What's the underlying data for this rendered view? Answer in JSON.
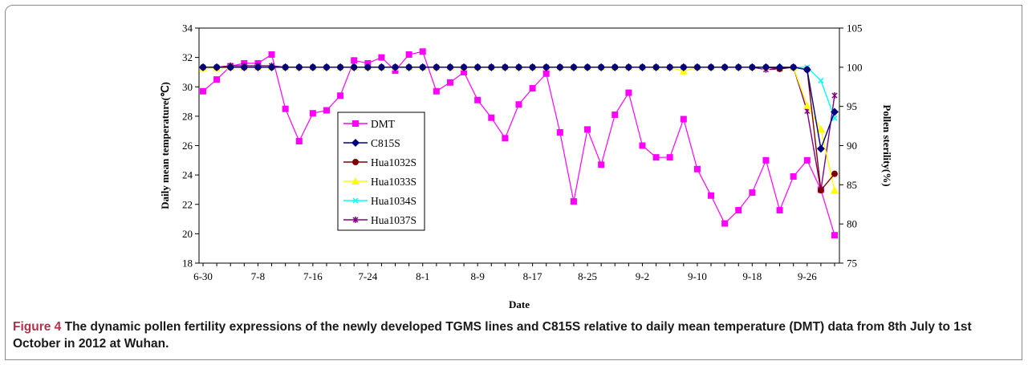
{
  "caption": {
    "label": "Figure 4",
    "text": "The dynamic pollen fertility expressions of the newly developed TGMS lines and C815S relative to daily mean temperature (DMT) data from 8th July to 1st October in 2012 at Wuhan."
  },
  "chart_data": {
    "type": "line",
    "xlabel": "Date",
    "ylabel": "Daily mean temperature(℃)",
    "y2label": "Pollen sterility(%)",
    "ylim": [
      18,
      34
    ],
    "y2lim": [
      75,
      105
    ],
    "yticks": [
      18,
      20,
      22,
      24,
      26,
      28,
      30,
      32,
      34
    ],
    "y2ticks": [
      75,
      80,
      85,
      90,
      95,
      100,
      105
    ],
    "x_tick_labels": [
      "6-30",
      "7-8",
      "7-16",
      "7-24",
      "8-1",
      "8-9",
      "8-17",
      "8-25",
      "9-2",
      "9-10",
      "9-18",
      "9-26"
    ],
    "x_tick_every": 4,
    "legend_position": "center-left",
    "grid": false,
    "temperature_series": {
      "name": "DMT",
      "color": "#ff00ff",
      "marker": "square",
      "values": [
        29.7,
        30.5,
        31.4,
        31.6,
        31.6,
        32.2,
        28.5,
        26.3,
        28.2,
        28.4,
        29.4,
        31.8,
        31.6,
        32.0,
        31.1,
        32.2,
        32.4,
        29.7,
        30.3,
        31.0,
        29.1,
        27.9,
        26.5,
        28.8,
        29.9,
        30.9,
        26.9,
        22.2,
        27.1,
        24.7,
        28.1,
        29.6,
        26.0,
        25.2,
        25.2,
        27.8,
        24.4,
        22.6,
        20.7,
        21.6,
        22.8,
        25.0,
        21.6,
        23.9,
        25.0,
        23.0,
        19.9
      ]
    },
    "sterility_series": [
      {
        "name": "C815S",
        "color": "#000080",
        "marker": "diamond",
        "values": [
          100,
          100,
          100,
          100,
          100,
          100,
          100,
          100,
          100,
          100,
          100,
          100,
          100,
          100,
          100,
          100,
          100,
          100,
          100,
          100,
          100,
          100,
          100,
          100,
          100,
          100,
          100,
          100,
          100,
          100,
          100,
          100,
          100,
          100,
          100,
          100,
          100,
          100,
          100,
          100,
          100,
          100,
          100,
          100,
          99.7,
          89.6,
          94.3
        ]
      },
      {
        "name": "Hua1032S",
        "color": "#800000",
        "marker": "circle",
        "values": [
          100,
          100,
          100,
          100,
          100,
          100,
          100,
          100,
          100,
          100,
          100,
          100,
          100,
          100,
          100,
          100,
          100,
          100,
          100,
          100,
          100,
          100,
          100,
          100,
          100,
          100,
          100,
          100,
          100,
          100,
          100,
          100,
          100,
          100,
          100,
          100,
          100,
          100,
          100,
          100,
          100,
          100,
          99.8,
          100,
          99.7,
          84.3,
          86.4
        ]
      },
      {
        "name": "Hua1033S",
        "color": "#ffff00",
        "marker": "triangle",
        "values": [
          99.9,
          99.9,
          100,
          100,
          100,
          100,
          100,
          100,
          100,
          100,
          100,
          100,
          100,
          100,
          100,
          100,
          100,
          100,
          100,
          100,
          100,
          100,
          100,
          100,
          100,
          100,
          100,
          100,
          100,
          100,
          100,
          100,
          100,
          100,
          100,
          99.5,
          100,
          100,
          100,
          100,
          100,
          100,
          100,
          100,
          95.1,
          92.1,
          84.3
        ]
      },
      {
        "name": "Hua1034S",
        "color": "#00ffff",
        "marker": "x",
        "values": [
          100,
          100,
          100,
          100,
          100,
          100,
          100,
          100,
          100,
          100,
          100,
          100,
          100,
          100,
          100,
          100,
          100,
          100,
          100,
          100,
          100,
          100,
          100,
          100,
          100,
          100,
          100,
          100,
          100,
          100,
          100,
          100,
          100,
          100,
          100,
          100,
          100,
          100,
          100,
          100,
          100,
          100,
          100,
          100,
          100,
          98.3,
          93.5
        ]
      },
      {
        "name": "Hua1037S",
        "color": "#800080",
        "marker": "star",
        "values": [
          100,
          100,
          100.2,
          100.2,
          100.2,
          100.2,
          100,
          100,
          100,
          100,
          100,
          100,
          100,
          100,
          100,
          100,
          100,
          100,
          100,
          100,
          100,
          100,
          100,
          100,
          100,
          100,
          100,
          100,
          100,
          100,
          100,
          100,
          100,
          100,
          100,
          100,
          100,
          100,
          100,
          100,
          100,
          99.7,
          99.8,
          100,
          94.4,
          84.3,
          96.4
        ]
      }
    ]
  }
}
